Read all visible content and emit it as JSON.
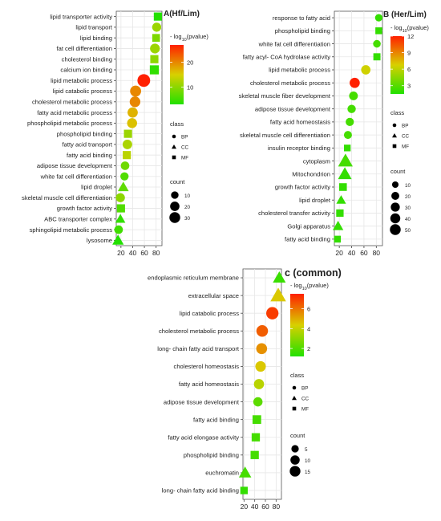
{
  "chart_data": [
    {
      "type": "scatter",
      "title": "A(Hf/Lim)",
      "xlabel": "",
      "ylabel": "",
      "x_ticks": [
        20,
        40,
        60,
        80
      ],
      "xlim": [
        12,
        90
      ],
      "color_scale": {
        "title": "- log10(pvalue)",
        "ticks": [
          10,
          20
        ],
        "range": [
          3,
          27
        ]
      },
      "class_legend": {
        "title": "class",
        "entries": [
          "BP",
          "CC",
          "MF"
        ]
      },
      "size_legend": {
        "title": "count",
        "entries": [
          10,
          20,
          30
        ]
      },
      "terms": [
        {
          "label": "lipid transporter activity",
          "x": 83,
          "count": 13,
          "pvalue": 3,
          "class": "MF"
        },
        {
          "label": "lipid transport",
          "x": 81,
          "count": 11,
          "pvalue": 11,
          "class": "BP"
        },
        {
          "label": "lipid binding",
          "x": 80,
          "count": 11,
          "pvalue": 9,
          "class": "MF"
        },
        {
          "label": "fat cell differentiation",
          "x": 78,
          "count": 14,
          "pvalue": 11,
          "class": "BP"
        },
        {
          "label": "cholesterol binding",
          "x": 77,
          "count": 13,
          "pvalue": 10,
          "class": "MF"
        },
        {
          "label": "calcium ion binding",
          "x": 77,
          "count": 18,
          "pvalue": 4,
          "class": "MF"
        },
        {
          "label": "lipid metabolic process",
          "x": 59,
          "count": 30,
          "pvalue": 27,
          "class": "BP"
        },
        {
          "label": "lipid catabolic process",
          "x": 45,
          "count": 20,
          "pvalue": 20,
          "class": "BP"
        },
        {
          "label": "cholesterol metabolic process",
          "x": 44,
          "count": 18,
          "pvalue": 20,
          "class": "BP"
        },
        {
          "label": "fatty acid metabolic process",
          "x": 40,
          "count": 16,
          "pvalue": 17,
          "class": "BP"
        },
        {
          "label": "phospholipid metabolic process",
          "x": 39,
          "count": 15,
          "pvalue": 16,
          "class": "BP"
        },
        {
          "label": "phospholipid binding",
          "x": 32,
          "count": 13,
          "pvalue": 11,
          "class": "MF"
        },
        {
          "label": "fatty acid transport",
          "x": 31,
          "count": 13,
          "pvalue": 12,
          "class": "BP"
        },
        {
          "label": "fatty acid binding",
          "x": 30,
          "count": 13,
          "pvalue": 13,
          "class": "MF"
        },
        {
          "label": "adipose tissue development",
          "x": 27,
          "count": 9,
          "pvalue": 8,
          "class": "BP"
        },
        {
          "label": "white fat cell differentiation",
          "x": 26,
          "count": 8,
          "pvalue": 6,
          "class": "BP"
        },
        {
          "label": "lipid droplet",
          "x": 24,
          "count": 13,
          "pvalue": 7,
          "class": "CC"
        },
        {
          "label": "skeletal muscle cell differentiation",
          "x": 19,
          "count": 11,
          "pvalue": 10,
          "class": "BP"
        },
        {
          "label": "growth factor activity",
          "x": 20,
          "count": 13,
          "pvalue": 6,
          "class": "MF"
        },
        {
          "label": "ABC transporter complex",
          "x": 19,
          "count": 10,
          "pvalue": 4,
          "class": "CC"
        },
        {
          "label": "sphingolipid metabolic process",
          "x": 16,
          "count": 9,
          "pvalue": 5,
          "class": "BP"
        },
        {
          "label": "lysosome",
          "x": 15,
          "count": 15,
          "pvalue": 3,
          "class": "CC"
        }
      ]
    },
    {
      "type": "scatter",
      "title": "B (Her/Lim)",
      "xlabel": "",
      "ylabel": "",
      "x_ticks": [
        20,
        40,
        60,
        80
      ],
      "xlim": [
        12,
        90
      ],
      "color_scale": {
        "title": "- log10(pvalue)",
        "ticks": [
          3,
          6,
          9,
          12
        ],
        "range": [
          1.5,
          12
        ]
      },
      "class_legend": {
        "title": "class",
        "entries": [
          "BP",
          "CC",
          "MF"
        ]
      },
      "size_legend": {
        "title": "count",
        "entries": [
          10,
          20,
          30,
          40,
          50
        ]
      },
      "terms": [
        {
          "label": "response to fatty acid",
          "x": 84,
          "count": 9,
          "pvalue": 2,
          "class": "BP"
        },
        {
          "label": "phospholipid binding",
          "x": 84,
          "count": 12,
          "pvalue": 2,
          "class": "MF"
        },
        {
          "label": "white fat cell differentiation",
          "x": 81,
          "count": 10,
          "pvalue": 2.5,
          "class": "BP"
        },
        {
          "label": "fatty acyl- CoA hydrolase activity",
          "x": 81,
          "count": 14,
          "pvalue": 2,
          "class": "MF"
        },
        {
          "label": "lipid metabolic process",
          "x": 63,
          "count": 20,
          "pvalue": 6.5,
          "class": "BP"
        },
        {
          "label": "cholesterol metabolic process",
          "x": 45,
          "count": 26,
          "pvalue": 12,
          "class": "BP"
        },
        {
          "label": "skeletal muscle fiber development",
          "x": 43,
          "count": 16,
          "pvalue": 2.5,
          "class": "BP"
        },
        {
          "label": "adipose tissue development",
          "x": 40,
          "count": 14,
          "pvalue": 2.5,
          "class": "BP"
        },
        {
          "label": "fatty acid homeostasis",
          "x": 37,
          "count": 13,
          "pvalue": 2.5,
          "class": "BP"
        },
        {
          "label": "skeletal muscle cell differentiation",
          "x": 34,
          "count": 12,
          "pvalue": 2.5,
          "class": "BP"
        },
        {
          "label": "insulin receptor binding",
          "x": 33,
          "count": 11,
          "pvalue": 2,
          "class": "MF"
        },
        {
          "label": "cytoplasm",
          "x": 30,
          "count": 52,
          "pvalue": 2.5,
          "class": "CC"
        },
        {
          "label": "Mitochondrion",
          "x": 29,
          "count": 42,
          "pvalue": 2,
          "class": "CC"
        },
        {
          "label": "growth factor activity",
          "x": 26,
          "count": 18,
          "pvalue": 2,
          "class": "MF"
        },
        {
          "label": "lipid droplet",
          "x": 23,
          "count": 15,
          "pvalue": 2,
          "class": "CC"
        },
        {
          "label": "cholesterol transfer activity",
          "x": 21,
          "count": 16,
          "pvalue": 2,
          "class": "MF"
        },
        {
          "label": "Golgi apparatus",
          "x": 18,
          "count": 20,
          "pvalue": 2,
          "class": "CC"
        },
        {
          "label": "fatty acid binding",
          "x": 17,
          "count": 12,
          "pvalue": 2,
          "class": "MF"
        }
      ]
    },
    {
      "type": "scatter",
      "title": "c (common)",
      "xlabel": "",
      "ylabel": "",
      "x_ticks": [
        20,
        40,
        60,
        80
      ],
      "xlim": [
        18,
        90
      ],
      "color_scale": {
        "title": "- log10(pvalue)",
        "ticks": [
          2,
          4,
          6
        ],
        "range": [
          1.2,
          7.5
        ]
      },
      "class_legend": {
        "title": "class",
        "entries": [
          "BP",
          "CC",
          "MF"
        ]
      },
      "size_legend": {
        "title": "count",
        "entries": [
          5,
          10,
          15
        ]
      },
      "terms": [
        {
          "label": "endoplasmic reticulum membrane",
          "x": 86,
          "count": 11,
          "pvalue": 1.6,
          "class": "CC"
        },
        {
          "label": "extracellular space",
          "x": 84,
          "count": 19,
          "pvalue": 4.5,
          "class": "CC"
        },
        {
          "label": "lipid catabolic process",
          "x": 73,
          "count": 14,
          "pvalue": 7,
          "class": "BP"
        },
        {
          "label": "cholesterol metabolic process",
          "x": 54,
          "count": 12,
          "pvalue": 6.4,
          "class": "BP"
        },
        {
          "label": "long- chain fatty acid transport",
          "x": 53,
          "count": 10,
          "pvalue": 5.5,
          "class": "BP"
        },
        {
          "label": "cholesterol homeostasis",
          "x": 51,
          "count": 9,
          "pvalue": 4.5,
          "class": "BP"
        },
        {
          "label": "fatty acid homeostasis",
          "x": 48,
          "count": 8,
          "pvalue": 3.8,
          "class": "BP"
        },
        {
          "label": "adipose tissue development",
          "x": 46,
          "count": 6,
          "pvalue": 2.2,
          "class": "BP"
        },
        {
          "label": "fatty acid binding",
          "x": 44,
          "count": 8,
          "pvalue": 1.8,
          "class": "MF"
        },
        {
          "label": "fatty acid elongase activity",
          "x": 42,
          "count": 7,
          "pvalue": 1.8,
          "class": "MF"
        },
        {
          "label": "phospholipid binding",
          "x": 40,
          "count": 7,
          "pvalue": 1.8,
          "class": "MF"
        },
        {
          "label": "euchromatin",
          "x": 22,
          "count": 10,
          "pvalue": 1.8,
          "class": "CC"
        },
        {
          "label": "long- chain fatty acid binding",
          "x": 20,
          "count": 5,
          "pvalue": 1.5,
          "class": "MF"
        }
      ]
    }
  ]
}
